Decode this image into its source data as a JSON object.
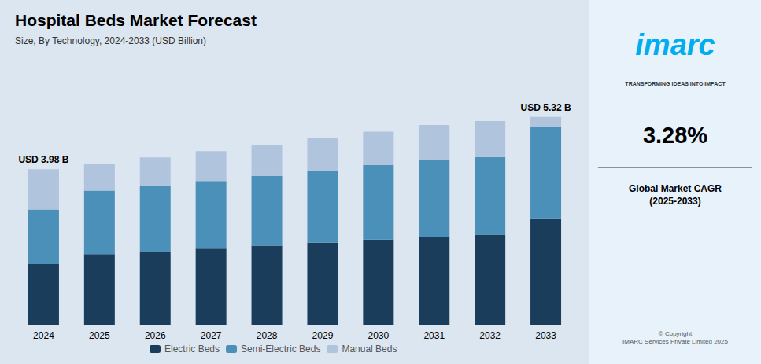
{
  "chart_data": {
    "type": "bar",
    "title": "Hospital Beds Market Forecast",
    "subtitle": "Size, By Technology, 2024-2033 (USD Billion)",
    "categories": [
      "2024",
      "2025",
      "2026",
      "2027",
      "2028",
      "2029",
      "2030",
      "2031",
      "2032",
      "2033"
    ],
    "series": [
      {
        "name": "Electric Beds",
        "color": "#1a3d5c",
        "values": [
          1.55,
          1.803891892,
          1.873180662,
          1.945142857,
          2.022767857,
          2.095606695,
          2.178267717,
          2.253302583,
          2.302512998,
          2.72
        ]
      },
      {
        "name": "Semi-Electric Beds",
        "color": "#4a90b8",
        "values": [
          1.4,
          1.62572973,
          1.677150127,
          1.733714286,
          1.786607143,
          1.846129707,
          1.905984252,
          1.96103321,
          1.986481802,
          2.33
        ]
      },
      {
        "name": "Manual Beds",
        "color": "#b0c4de",
        "values": [
          1.03,
          0.690378378,
          0.729669211,
          0.761142857,
          0.790625,
          0.828263598,
          0.855748031,
          0.895664207,
          0.921005199,
          0.27
        ]
      }
    ],
    "stacked": true,
    "ylim": [
      0,
      6.5
    ],
    "tick_labels": "x",
    "grid": false,
    "legend": "bottom",
    "annotations": [
      {
        "text": "USD 3.98 B",
        "category": "2024",
        "y": 3.98
      },
      {
        "text": "USD 5.32 B",
        "category": "2033",
        "y": 5.32
      }
    ],
    "side_panel": {
      "logo": "imarc",
      "tagline": "TRANSFORMING IDEAS INTO IMPACT",
      "value": "3.28%",
      "label": "Global Market CAGR\n(2025-2033)",
      "copyright": "© Copyright\nIMARC Services Private Limited 2025"
    }
  }
}
